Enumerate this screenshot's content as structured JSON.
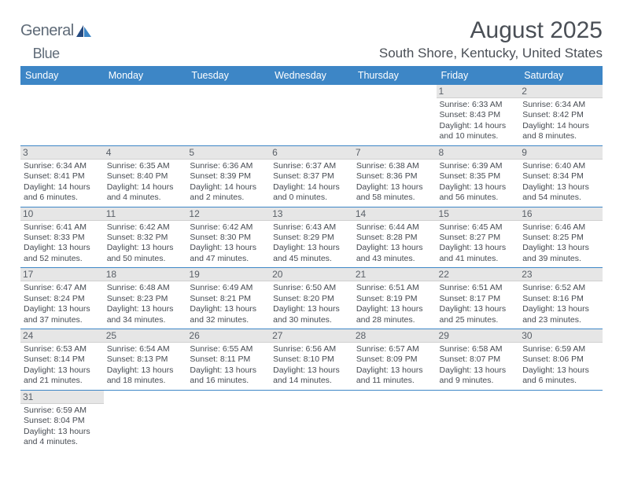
{
  "logo": {
    "main": "General",
    "accent": "Blue"
  },
  "month_title": "August 2025",
  "location": "South Shore, Kentucky, United States",
  "colors": {
    "header_bg": "#3d86c6",
    "header_text": "#ffffff",
    "daynum_bg": "#e6e6e6",
    "border": "#3d86c6",
    "text": "#464b52",
    "title_text": "#4a4f56",
    "logo_gray": "#5f6b78",
    "logo_blue": "#2b7fbf",
    "logo_navy": "#254a80"
  },
  "weekdays": [
    "Sunday",
    "Monday",
    "Tuesday",
    "Wednesday",
    "Thursday",
    "Friday",
    "Saturday"
  ],
  "weeks": [
    [
      null,
      null,
      null,
      null,
      null,
      {
        "n": "1",
        "sunrise": "Sunrise: 6:33 AM",
        "sunset": "Sunset: 8:43 PM",
        "daylight": "Daylight: 14 hours and 10 minutes."
      },
      {
        "n": "2",
        "sunrise": "Sunrise: 6:34 AM",
        "sunset": "Sunset: 8:42 PM",
        "daylight": "Daylight: 14 hours and 8 minutes."
      }
    ],
    [
      {
        "n": "3",
        "sunrise": "Sunrise: 6:34 AM",
        "sunset": "Sunset: 8:41 PM",
        "daylight": "Daylight: 14 hours and 6 minutes."
      },
      {
        "n": "4",
        "sunrise": "Sunrise: 6:35 AM",
        "sunset": "Sunset: 8:40 PM",
        "daylight": "Daylight: 14 hours and 4 minutes."
      },
      {
        "n": "5",
        "sunrise": "Sunrise: 6:36 AM",
        "sunset": "Sunset: 8:39 PM",
        "daylight": "Daylight: 14 hours and 2 minutes."
      },
      {
        "n": "6",
        "sunrise": "Sunrise: 6:37 AM",
        "sunset": "Sunset: 8:37 PM",
        "daylight": "Daylight: 14 hours and 0 minutes."
      },
      {
        "n": "7",
        "sunrise": "Sunrise: 6:38 AM",
        "sunset": "Sunset: 8:36 PM",
        "daylight": "Daylight: 13 hours and 58 minutes."
      },
      {
        "n": "8",
        "sunrise": "Sunrise: 6:39 AM",
        "sunset": "Sunset: 8:35 PM",
        "daylight": "Daylight: 13 hours and 56 minutes."
      },
      {
        "n": "9",
        "sunrise": "Sunrise: 6:40 AM",
        "sunset": "Sunset: 8:34 PM",
        "daylight": "Daylight: 13 hours and 54 minutes."
      }
    ],
    [
      {
        "n": "10",
        "sunrise": "Sunrise: 6:41 AM",
        "sunset": "Sunset: 8:33 PM",
        "daylight": "Daylight: 13 hours and 52 minutes."
      },
      {
        "n": "11",
        "sunrise": "Sunrise: 6:42 AM",
        "sunset": "Sunset: 8:32 PM",
        "daylight": "Daylight: 13 hours and 50 minutes."
      },
      {
        "n": "12",
        "sunrise": "Sunrise: 6:42 AM",
        "sunset": "Sunset: 8:30 PM",
        "daylight": "Daylight: 13 hours and 47 minutes."
      },
      {
        "n": "13",
        "sunrise": "Sunrise: 6:43 AM",
        "sunset": "Sunset: 8:29 PM",
        "daylight": "Daylight: 13 hours and 45 minutes."
      },
      {
        "n": "14",
        "sunrise": "Sunrise: 6:44 AM",
        "sunset": "Sunset: 8:28 PM",
        "daylight": "Daylight: 13 hours and 43 minutes."
      },
      {
        "n": "15",
        "sunrise": "Sunrise: 6:45 AM",
        "sunset": "Sunset: 8:27 PM",
        "daylight": "Daylight: 13 hours and 41 minutes."
      },
      {
        "n": "16",
        "sunrise": "Sunrise: 6:46 AM",
        "sunset": "Sunset: 8:25 PM",
        "daylight": "Daylight: 13 hours and 39 minutes."
      }
    ],
    [
      {
        "n": "17",
        "sunrise": "Sunrise: 6:47 AM",
        "sunset": "Sunset: 8:24 PM",
        "daylight": "Daylight: 13 hours and 37 minutes."
      },
      {
        "n": "18",
        "sunrise": "Sunrise: 6:48 AM",
        "sunset": "Sunset: 8:23 PM",
        "daylight": "Daylight: 13 hours and 34 minutes."
      },
      {
        "n": "19",
        "sunrise": "Sunrise: 6:49 AM",
        "sunset": "Sunset: 8:21 PM",
        "daylight": "Daylight: 13 hours and 32 minutes."
      },
      {
        "n": "20",
        "sunrise": "Sunrise: 6:50 AM",
        "sunset": "Sunset: 8:20 PM",
        "daylight": "Daylight: 13 hours and 30 minutes."
      },
      {
        "n": "21",
        "sunrise": "Sunrise: 6:51 AM",
        "sunset": "Sunset: 8:19 PM",
        "daylight": "Daylight: 13 hours and 28 minutes."
      },
      {
        "n": "22",
        "sunrise": "Sunrise: 6:51 AM",
        "sunset": "Sunset: 8:17 PM",
        "daylight": "Daylight: 13 hours and 25 minutes."
      },
      {
        "n": "23",
        "sunrise": "Sunrise: 6:52 AM",
        "sunset": "Sunset: 8:16 PM",
        "daylight": "Daylight: 13 hours and 23 minutes."
      }
    ],
    [
      {
        "n": "24",
        "sunrise": "Sunrise: 6:53 AM",
        "sunset": "Sunset: 8:14 PM",
        "daylight": "Daylight: 13 hours and 21 minutes."
      },
      {
        "n": "25",
        "sunrise": "Sunrise: 6:54 AM",
        "sunset": "Sunset: 8:13 PM",
        "daylight": "Daylight: 13 hours and 18 minutes."
      },
      {
        "n": "26",
        "sunrise": "Sunrise: 6:55 AM",
        "sunset": "Sunset: 8:11 PM",
        "daylight": "Daylight: 13 hours and 16 minutes."
      },
      {
        "n": "27",
        "sunrise": "Sunrise: 6:56 AM",
        "sunset": "Sunset: 8:10 PM",
        "daylight": "Daylight: 13 hours and 14 minutes."
      },
      {
        "n": "28",
        "sunrise": "Sunrise: 6:57 AM",
        "sunset": "Sunset: 8:09 PM",
        "daylight": "Daylight: 13 hours and 11 minutes."
      },
      {
        "n": "29",
        "sunrise": "Sunrise: 6:58 AM",
        "sunset": "Sunset: 8:07 PM",
        "daylight": "Daylight: 13 hours and 9 minutes."
      },
      {
        "n": "30",
        "sunrise": "Sunrise: 6:59 AM",
        "sunset": "Sunset: 8:06 PM",
        "daylight": "Daylight: 13 hours and 6 minutes."
      }
    ],
    [
      {
        "n": "31",
        "sunrise": "Sunrise: 6:59 AM",
        "sunset": "Sunset: 8:04 PM",
        "daylight": "Daylight: 13 hours and 4 minutes."
      },
      null,
      null,
      null,
      null,
      null,
      null
    ]
  ]
}
